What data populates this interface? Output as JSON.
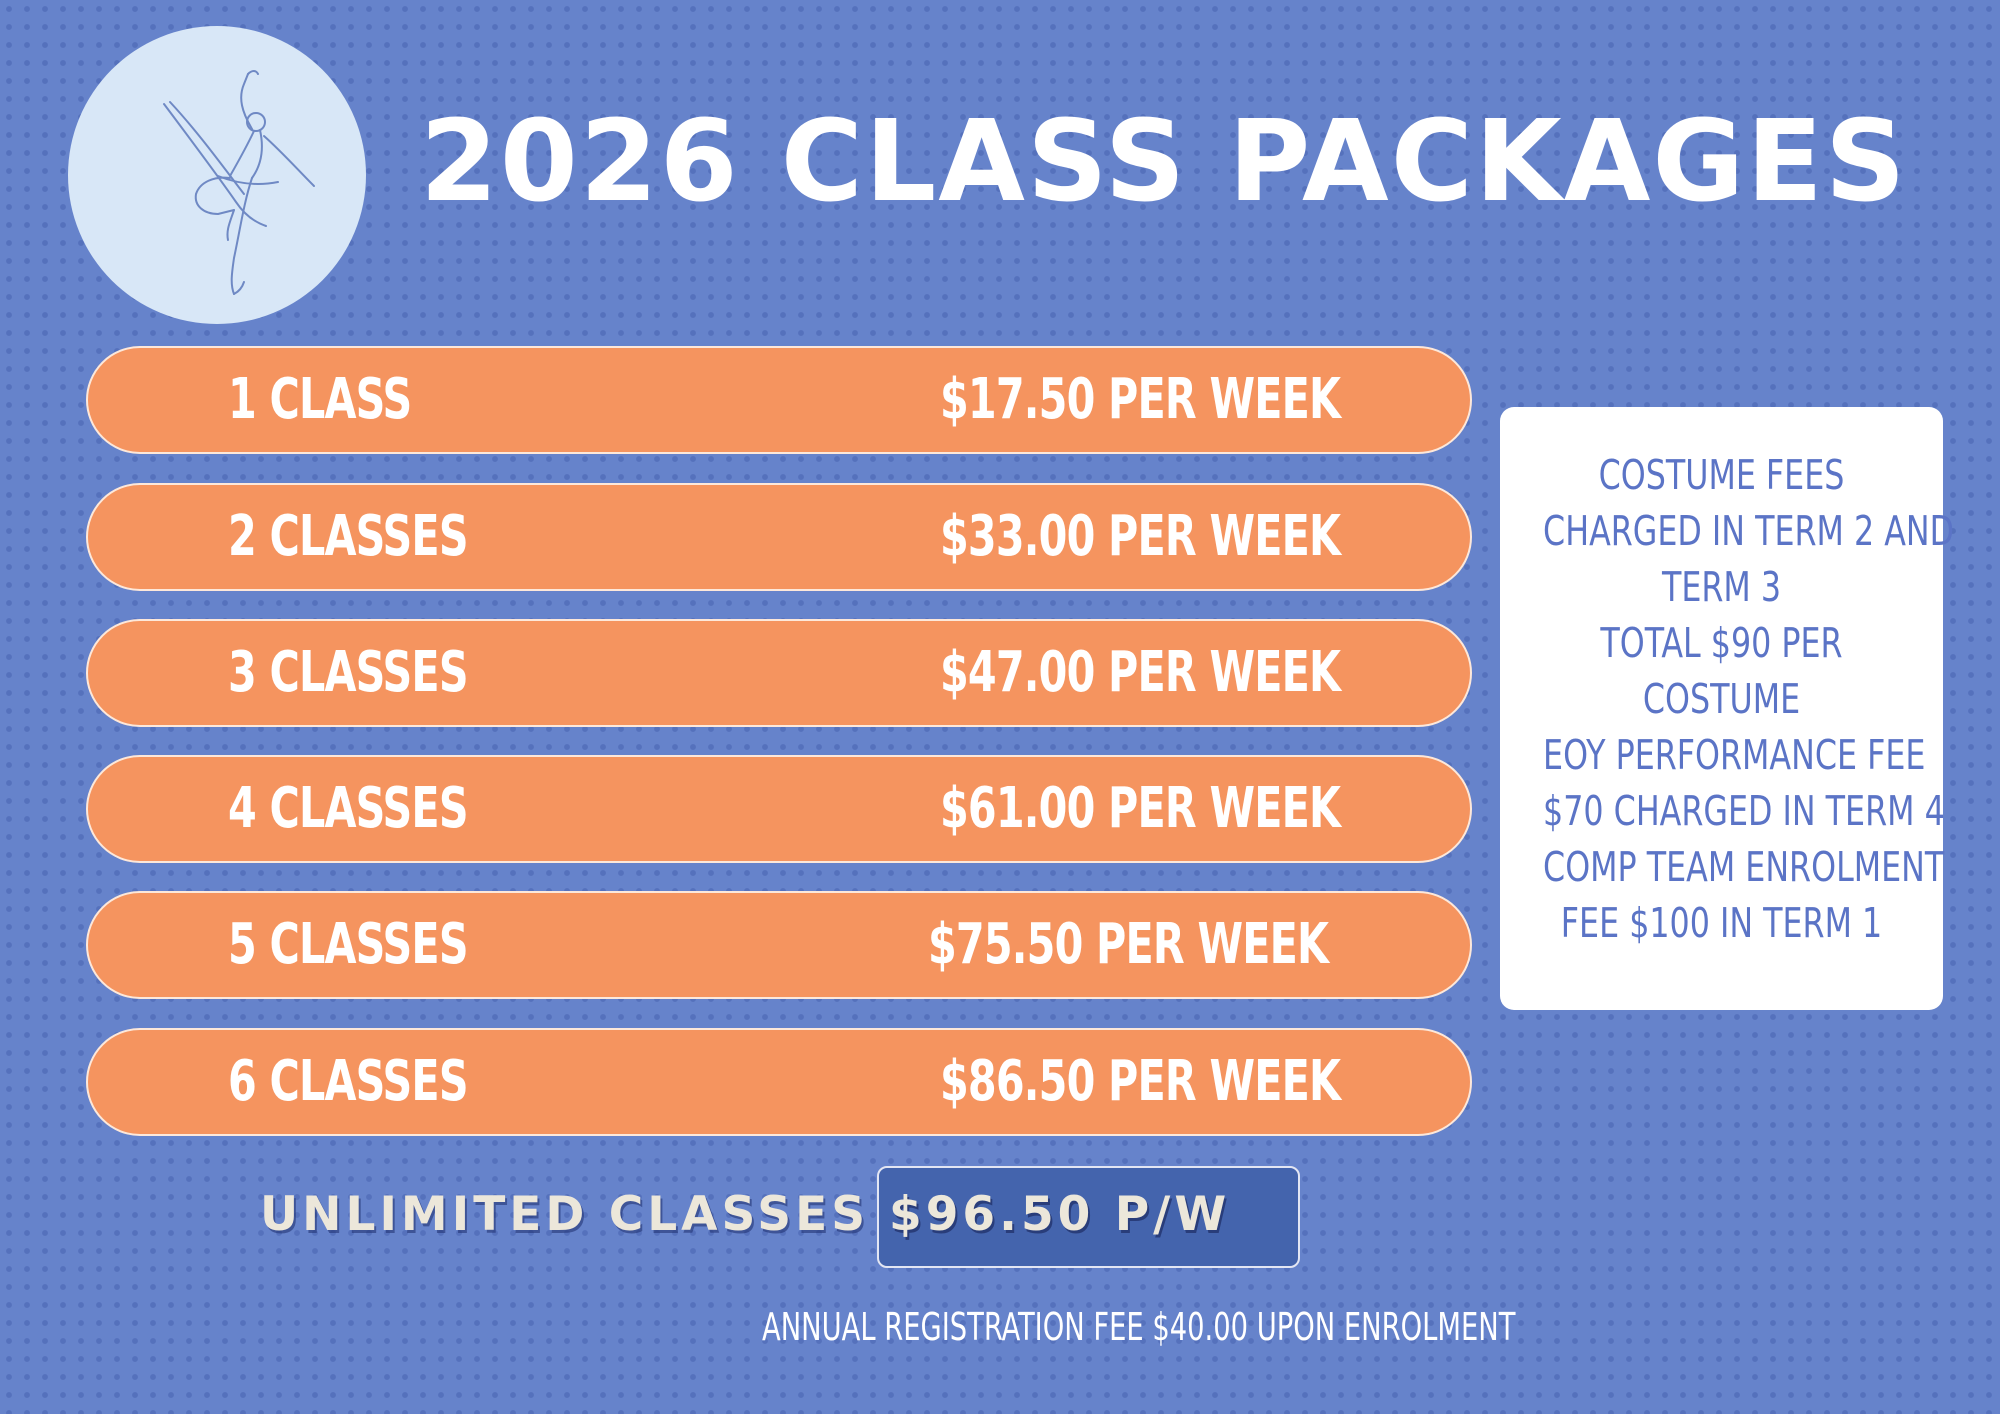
{
  "header": {
    "title": "2026 CLASS PACKAGES",
    "logo_icon": "ballet-dancer-icon"
  },
  "packages": [
    {
      "label": "1 CLASS",
      "price": "$17.50 PER WEEK"
    },
    {
      "label": "2 CLASSES",
      "price": "$33.00 PER WEEK"
    },
    {
      "label": "3 CLASSES",
      "price": "$47.00 PER WEEK"
    },
    {
      "label": "4 CLASSES",
      "price": "$61.00 PER WEEK"
    },
    {
      "label": "5 CLASSES",
      "price": "$75.50 PER WEEK"
    },
    {
      "label": "6 CLASSES",
      "price": "$86.50 PER WEEK"
    }
  ],
  "fees": {
    "lines": [
      "COSTUME FEES",
      "CHARGED IN TERM 2 AND",
      "TERM 3",
      "TOTAL $90 PER",
      "COSTUME",
      "EOY PERFORMANCE FEE",
      "$70 CHARGED IN TERM 4",
      "COMP TEAM ENROLMENT",
      "FEE $100 IN TERM 1"
    ]
  },
  "unlimited": {
    "label": "UNLIMITED CLASSES",
    "price": "$96.50 P/W"
  },
  "footer": {
    "note": "ANNUAL REGISTRATION FEE $40.00 UPON ENROLMENT"
  },
  "colors": {
    "background": "#6683cb",
    "pill": "#f5945f",
    "logo_circle": "#d8e7f7",
    "info_text": "#5b74c6",
    "unlimited_box": "#4464ad"
  }
}
